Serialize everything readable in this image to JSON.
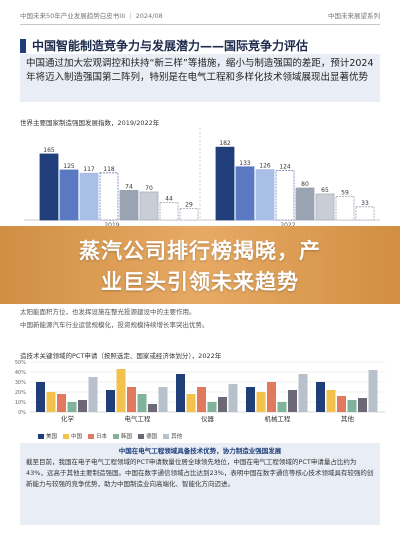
{
  "header": {
    "left": "中国未来50年产业发展趋势白皮书III ｜ 2024/08",
    "right": "中国未来展望系列"
  },
  "section": {
    "title": "中国智能制造竞争力与发展潜力——国际竞争力评估"
  },
  "intro": {
    "text": "中国通过加大宏观调控和扶持“新三样”等措施，缩小与制造强国的差距，预计2024年将迈入制造强国第二阵列，特别是在电气工程和多样化技术领域展现出显著优势"
  },
  "chart1": {
    "title": "世界主要国家制造强国发展指数，2019/2022年"
  },
  "banner": {
    "line1": "蒸汽公司排行榜揭晓，产",
    "line2": "业巨头引领未来趋势"
  },
  "faded": {
    "line1": "太阳能面积方位，也发挥设施在整光投源建设中的主要作用。",
    "line2": "中国新能源汽车行业运营规模化，投资规模持续增长率突出优势。"
  },
  "chart2": {
    "title": "造技术关键领域的PCT申请（按照选定、国家或经济体划分），2022年"
  },
  "legend2": [
    "美国",
    "中国",
    "日本",
    "韩国",
    "德国",
    "其他"
  ],
  "note": {
    "heading": "中国在电气工程领域具备技术优势，协力制造业强国发展",
    "text": "截至目前，我国在电子电气工程领域的PCT申请数量位居全球领先地位，中国在电气工程领域的PCT申请量占比约为43%，远高于其他主要制造强国。中国在数字通信领域占比达到23%，表明中国在数字通信等核心技术领域具有较强的创新能力与较强的竞争优势，助力中国制造业向高端化、智能化方向迈进。"
  },
  "colors": {
    "navy": "#1f3e7a",
    "blue": "#5b78c2",
    "lightblue": "#a9bfe6",
    "gray": "#9aa3b2",
    "lightgray": "#c9ced6",
    "banner": "#dd9a4d"
  },
  "chart_data": [
    {
      "type": "bar",
      "categories": [
        "2019",
        "2022"
      ],
      "series": [
        {
          "values": [
            165,
            182
          ]
        },
        {
          "values": [
            125,
            133
          ]
        },
        {
          "values": [
            117,
            126
          ]
        },
        {
          "values": [
            118,
            124
          ]
        },
        {
          "values": [
            74,
            80
          ]
        },
        {
          "values": [
            70,
            65
          ]
        },
        {
          "values": [
            44,
            59
          ]
        },
        {
          "values": [
            29,
            33
          ]
        }
      ],
      "ylim": [
        0,
        200
      ]
    },
    {
      "type": "bar",
      "categories": [
        "化学",
        "电气工程",
        "仪器",
        "机械工程",
        "其他"
      ],
      "series": [
        {
          "name": "美国",
          "values": [
            30,
            22,
            38,
            25,
            30
          ]
        },
        {
          "name": "中国",
          "values": [
            20,
            43,
            18,
            20,
            22
          ]
        },
        {
          "name": "日本",
          "values": [
            18,
            25,
            25,
            30,
            16
          ]
        },
        {
          "name": "韩国",
          "values": [
            10,
            18,
            10,
            10,
            12
          ]
        },
        {
          "name": "德国",
          "values": [
            12,
            8,
            15,
            22,
            14
          ]
        },
        {
          "name": "其他",
          "values": [
            35,
            25,
            28,
            38,
            42
          ]
        }
      ],
      "ylim": [
        0,
        50
      ]
    }
  ]
}
